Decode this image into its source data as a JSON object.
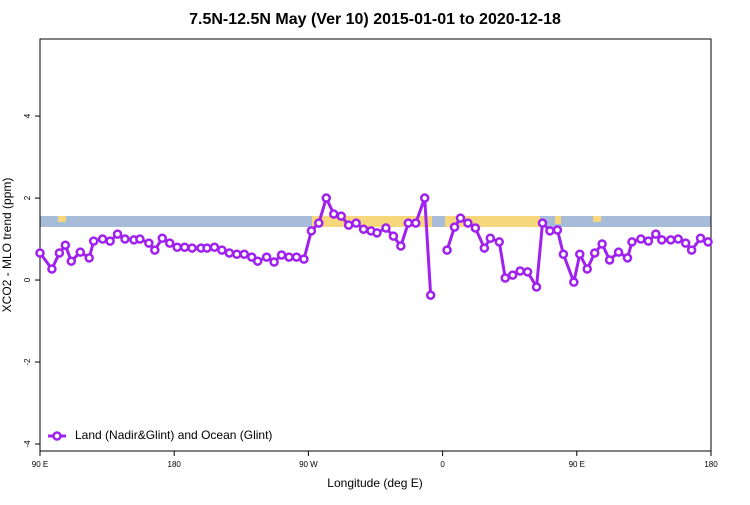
{
  "chart_data": {
    "type": "line",
    "title": "7.5N-12.5N May (Ver 10)   2015-01-01 to 2020-12-18",
    "x_label": "Longitude (deg E)",
    "y_label": "XCO2 - MLO trend (ppm)",
    "xlim": [
      90,
      540
    ],
    "ylim": [
      -4.17,
      5.88
    ],
    "xticks": [
      {
        "value": 90,
        "label": "90 E"
      },
      {
        "value": 180,
        "label": "180"
      },
      {
        "value": 270,
        "label": "90 W"
      },
      {
        "value": 360,
        "label": "0"
      },
      {
        "value": 450,
        "label": "90 E"
      },
      {
        "value": 540,
        "label": "180"
      }
    ],
    "yticks": [
      -4,
      -2,
      0,
      2,
      4
    ],
    "legend": "bottomleft",
    "x": [
      90,
      98,
      103,
      107,
      111,
      117,
      123,
      126,
      132,
      137,
      142,
      147,
      153,
      157,
      163,
      167,
      172,
      177,
      182,
      187,
      192,
      198,
      202,
      207,
      212,
      217,
      222,
      227,
      232,
      236,
      242,
      247,
      252,
      257,
      262,
      267,
      272,
      277,
      282,
      287,
      292,
      297,
      302,
      307,
      312,
      316,
      322,
      327,
      332,
      337,
      342,
      348,
      352,
      357,
      363,
      368,
      372,
      377,
      382,
      388,
      392,
      398,
      402,
      407,
      412,
      417,
      423,
      427,
      432,
      437,
      441,
      448,
      452,
      457,
      462,
      467,
      472,
      478,
      484,
      487,
      493,
      498,
      503,
      507,
      513,
      518,
      523,
      527,
      533,
      538
    ],
    "series": [
      {
        "name": "Land (Nadir&Glint) and Ocean (Glint)",
        "color": "#a020f0",
        "values": [
          0.66,
          0.27,
          0.66,
          0.85,
          0.46,
          0.68,
          0.54,
          0.95,
          1.0,
          0.95,
          1.12,
          1.0,
          0.98,
          1.0,
          0.9,
          0.73,
          1.02,
          0.9,
          0.8,
          0.8,
          0.78,
          0.78,
          0.78,
          0.8,
          0.73,
          0.66,
          0.63,
          0.63,
          0.56,
          0.46,
          0.56,
          0.44,
          0.61,
          0.56,
          0.56,
          0.51,
          1.2,
          1.39,
          2.0,
          1.61,
          1.56,
          1.34,
          1.39,
          1.24,
          1.2,
          1.15,
          1.27,
          1.07,
          0.83,
          1.39,
          1.39,
          2.0,
          -0.37,
          null,
          0.73,
          1.29,
          1.51,
          1.39,
          1.27,
          0.78,
          1.02,
          0.93,
          0.05,
          0.12,
          0.22,
          0.2,
          -0.17,
          1.39,
          1.2,
          1.22,
          0.63,
          -0.05,
          0.63,
          0.27,
          0.66,
          0.88,
          0.49,
          0.68,
          0.54,
          0.93,
          1.0,
          0.95,
          1.12,
          0.98,
          0.98,
          1.0,
          0.9,
          0.73,
          1.02,
          0.93
        ]
      }
    ]
  }
}
